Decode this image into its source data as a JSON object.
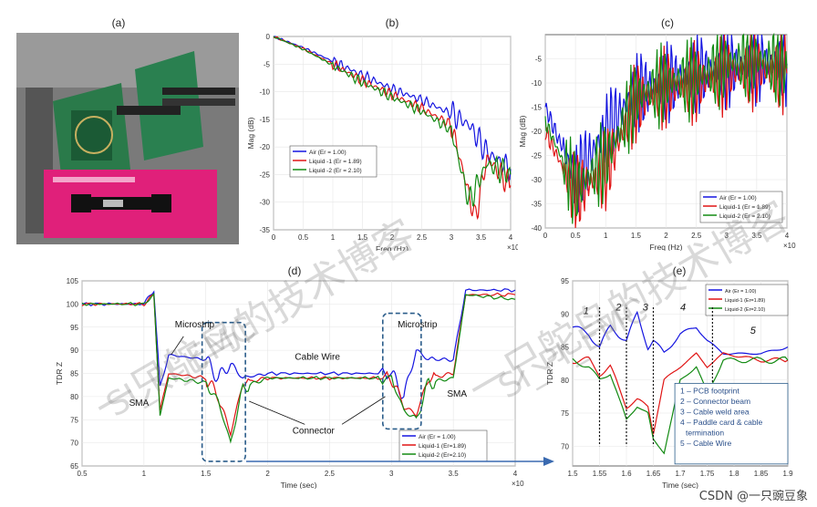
{
  "panels": {
    "a": {
      "label": "(a)"
    },
    "b": {
      "label": "(b)",
      "ylabel": "Mag (dB)",
      "xlabel": "Freq (Hz)",
      "xexp": "×10",
      "xticks": [
        "0",
        "0.5",
        "1",
        "1.5",
        "2",
        "2.5",
        "3",
        "3.5",
        "4"
      ],
      "yticks": [
        "0",
        "-5",
        "-10",
        "-15",
        "-20",
        "-25",
        "-30",
        "-35"
      ],
      "legend": [
        "Air (Er = 1.00)",
        "Liquid -1 (Er = 1.89)",
        "Liquid -2 (Er = 2.10)"
      ]
    },
    "c": {
      "label": "(c)",
      "ylabel": "Mag (dB)",
      "xlabel": "Freq (Hz)",
      "xexp": "×10",
      "xticks": [
        "0",
        "0.5",
        "1",
        "1.5",
        "2",
        "2.5",
        "3",
        "3.5",
        "4"
      ],
      "yticks": [
        "-5",
        "-10",
        "-15",
        "-20",
        "-25",
        "-30",
        "-35",
        "-40"
      ],
      "legend": [
        "Air (Er = 1.00)",
        "Liquid-1 (Er = 1.89)",
        "Liquid-2 (Er = 2.10)"
      ]
    },
    "d": {
      "label": "(d)",
      "ylabel": "TDR Z",
      "xlabel": "Time (sec)",
      "xexp": "×10",
      "xticks": [
        "0.5",
        "1",
        "1.5",
        "2",
        "2.5",
        "3",
        "3.5",
        "4"
      ],
      "yticks": [
        "105",
        "100",
        "95",
        "90",
        "85",
        "80",
        "75",
        "70",
        "65"
      ],
      "legend": [
        "Air (Er = 1.00)",
        "Liquid-1 (Er=1.89)",
        "Liquid-2 (Er=2.10)"
      ],
      "annotations": {
        "microstrip_left": "Microstrip",
        "microstrip_right": "Microstrip",
        "cable_wire": "Cable Wire",
        "connector": "Connector",
        "sma_left": "SMA",
        "sma_right": "SMA"
      }
    },
    "e": {
      "label": "(e)",
      "ylabel": "TDR Z",
      "xlabel": "Time (sec)",
      "xticks": [
        "1.5",
        "1.55",
        "1.6",
        "1.65",
        "1.7",
        "1.75",
        "1.8",
        "1.85",
        "1.9"
      ],
      "yticks": [
        "95",
        "90",
        "85",
        "80",
        "75",
        "70"
      ],
      "legend": [
        "Air (Er = 1.00)",
        "Liquid-1 (Er=1.89)",
        "Liquid-2 (Er=2.10)"
      ],
      "region_numbers": [
        "1",
        "2",
        "3",
        "4",
        "5"
      ],
      "key": [
        "1 – PCB footprint",
        "2 – Connector beam",
        "3 – Cable weld area",
        "4 – Paddle card & cable",
        "termination",
        "5 – Cable Wire"
      ]
    }
  },
  "watermark": "一只鸵鸟的技术博客",
  "watermark2": "SI_PI_EMC",
  "credit": "CSDN @一只豌豆象",
  "colors": {
    "air": "#1414e0",
    "liquid1": "#e01414",
    "liquid2": "#128a12"
  },
  "chart_data": [
    {
      "type": "line",
      "title": "",
      "xlabel": "Freq (Hz)",
      "ylabel": "Mag (dB)",
      "xlim": [
        0,
        4.0
      ],
      "ylim": [
        -35,
        0
      ],
      "series": [
        {
          "name": "Air (Er = 1.00)",
          "x": [
            0,
            0.5,
            1.0,
            1.5,
            2.0,
            2.5,
            3.0,
            3.3,
            3.6,
            4.0
          ],
          "values": [
            0,
            -2,
            -4.5,
            -7,
            -9.5,
            -11.5,
            -14,
            -16,
            -21,
            -24
          ]
        },
        {
          "name": "Liquid -1 (Er = 1.89)",
          "x": [
            0,
            0.5,
            1.0,
            1.5,
            2.0,
            2.5,
            3.0,
            3.4,
            3.6,
            4.0
          ],
          "values": [
            0,
            -2.2,
            -5,
            -8,
            -10.5,
            -13,
            -16,
            -33,
            -22,
            -27
          ]
        },
        {
          "name": "Liquid -2 (Er = 2.10)",
          "x": [
            0,
            0.5,
            1.0,
            1.5,
            2.0,
            2.5,
            3.0,
            3.3,
            3.6,
            4.0
          ],
          "values": [
            0,
            -2.3,
            -5.2,
            -8.3,
            -11,
            -13.5,
            -17,
            -30,
            -23,
            -25
          ]
        }
      ]
    },
    {
      "type": "line",
      "title": "",
      "xlabel": "Freq (Hz)",
      "ylabel": "Mag (dB)",
      "xlim": [
        0,
        4.0
      ],
      "ylim": [
        -40,
        0
      ],
      "series": [
        {
          "name": "Air (Er = 1.00)",
          "x": [
            0,
            0.5,
            1.0,
            1.5,
            2.0,
            2.5,
            3.0,
            3.5,
            4.0
          ],
          "values": [
            -15,
            -30,
            -20,
            -12,
            -10,
            -8,
            -7,
            -6,
            -6
          ]
        },
        {
          "name": "Liquid-1 (Er = 1.89)",
          "x": [
            0,
            0.5,
            1.0,
            1.5,
            2.0,
            2.5,
            3.0,
            3.5,
            4.0
          ],
          "values": [
            -20,
            -33,
            -28,
            -14,
            -11,
            -10,
            -8,
            -7,
            -8
          ]
        },
        {
          "name": "Liquid-2 (Er = 2.10)",
          "x": [
            0,
            0.5,
            1.0,
            1.5,
            2.0,
            2.5,
            3.0,
            3.5,
            4.0
          ],
          "values": [
            -18,
            -32,
            -26,
            -13,
            -10,
            -9,
            -6,
            -5,
            -7
          ]
        }
      ]
    },
    {
      "type": "line",
      "title": "",
      "xlabel": "Time (sec)",
      "ylabel": "TDR Z",
      "xlim": [
        0.5,
        4.0
      ],
      "ylim": [
        65,
        105
      ],
      "series": [
        {
          "name": "Air (Er = 1.00)",
          "x": [
            0.5,
            1.0,
            1.08,
            1.13,
            1.2,
            1.5,
            1.6,
            1.7,
            1.8,
            2.0,
            2.5,
            3.0,
            3.1,
            3.2,
            3.3,
            3.5,
            3.6,
            4.0
          ],
          "values": [
            100,
            100,
            103,
            82,
            89,
            88,
            84,
            87,
            84,
            85,
            85,
            85,
            80,
            90,
            88,
            88,
            103,
            103
          ]
        },
        {
          "name": "Liquid-1 (Er=1.89)",
          "x": [
            0.5,
            1.0,
            1.08,
            1.13,
            1.2,
            1.5,
            1.6,
            1.7,
            1.8,
            2.0,
            2.5,
            3.0,
            3.1,
            3.2,
            3.3,
            3.5,
            3.6,
            4.0
          ],
          "values": [
            100,
            100,
            102,
            77,
            85,
            84,
            80,
            72,
            83,
            84,
            84,
            84,
            78,
            76,
            84,
            85,
            102,
            102
          ]
        },
        {
          "name": "Liquid-2 (Er=2.10)",
          "x": [
            0.5,
            1.0,
            1.08,
            1.13,
            1.2,
            1.5,
            1.6,
            1.7,
            1.8,
            2.0,
            2.5,
            3.0,
            3.1,
            3.2,
            3.3,
            3.5,
            3.6,
            4.0
          ],
          "values": [
            100,
            100,
            102,
            76,
            84,
            83,
            79,
            70,
            82,
            84,
            84,
            84,
            77,
            75,
            83,
            84,
            102,
            101
          ]
        }
      ]
    },
    {
      "type": "line",
      "title": "",
      "xlabel": "Time (sec)",
      "ylabel": "TDR Z",
      "xlim": [
        1.5,
        1.9
      ],
      "ylim": [
        67,
        95
      ],
      "series": [
        {
          "name": "Air (Er = 1.00)",
          "x": [
            1.5,
            1.53,
            1.55,
            1.57,
            1.6,
            1.62,
            1.64,
            1.65,
            1.67,
            1.7,
            1.73,
            1.75,
            1.78,
            1.85,
            1.9
          ],
          "values": [
            88,
            87,
            85,
            88,
            86,
            90,
            85,
            86,
            84,
            87,
            88,
            86,
            84,
            84,
            85
          ]
        },
        {
          "name": "Liquid-1 (Er=1.89)",
          "x": [
            1.5,
            1.53,
            1.55,
            1.57,
            1.6,
            1.62,
            1.64,
            1.65,
            1.67,
            1.7,
            1.73,
            1.75,
            1.78,
            1.85,
            1.9
          ],
          "values": [
            83,
            83,
            81,
            82,
            76,
            77,
            76,
            72,
            80,
            82,
            84,
            82,
            84,
            83,
            83
          ]
        },
        {
          "name": "Liquid-2 (Er=2.10)",
          "x": [
            1.5,
            1.53,
            1.55,
            1.57,
            1.6,
            1.62,
            1.64,
            1.65,
            1.67,
            1.7,
            1.73,
            1.75,
            1.78,
            1.85,
            1.9
          ],
          "values": [
            83,
            82,
            80,
            81,
            74,
            76,
            75,
            71,
            69,
            80,
            82,
            78,
            83,
            83,
            83
          ]
        }
      ]
    }
  ]
}
